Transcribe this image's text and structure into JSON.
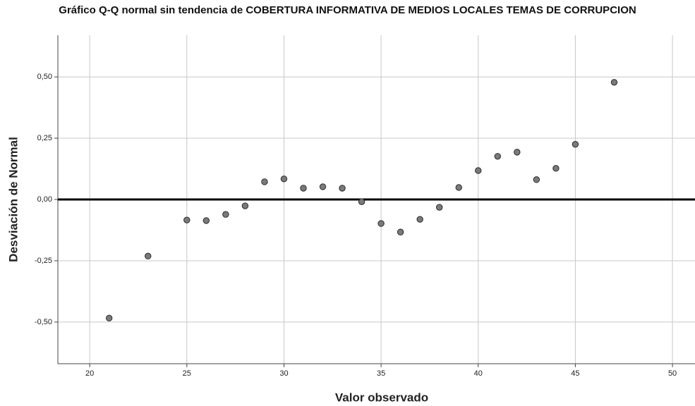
{
  "chart_data": {
    "type": "scatter",
    "title": "Gráfico Q-Q normal sin tendencia de COBERTURA INFORMATIVA DE MEDIOS LOCALES TEMAS DE CORRUPCION",
    "xlabel": "Valor observado",
    "ylabel": "Desviación de Normal",
    "x": [
      21,
      23,
      25,
      26,
      27,
      28,
      29,
      30,
      31,
      32,
      33,
      34,
      35,
      36,
      37,
      38,
      39,
      40,
      41,
      42,
      43,
      44,
      45,
      47
    ],
    "values": [
      -0.484,
      -0.231,
      -0.084,
      -0.086,
      -0.061,
      -0.026,
      0.072,
      0.084,
      0.046,
      0.052,
      0.046,
      -0.009,
      -0.098,
      -0.133,
      -0.081,
      -0.032,
      0.049,
      0.118,
      0.176,
      0.193,
      0.081,
      0.127,
      0.225,
      0.478
    ],
    "color": "#7a7a7a",
    "xlim": [
      18.36,
      51.16
    ],
    "ylim": [
      -0.67,
      0.67
    ],
    "xticks": [
      20,
      25,
      30,
      35,
      40,
      45,
      50
    ],
    "yticks": [
      {
        "value": -0.5,
        "label": "-0,50"
      },
      {
        "value": -0.25,
        "label": "-0,25"
      },
      {
        "value": 0,
        "label": "0,00"
      },
      {
        "value": 0.25,
        "label": "0,25"
      },
      {
        "value": 0.5,
        "label": "0,50"
      }
    ],
    "reference_line": 0,
    "grid": true
  }
}
